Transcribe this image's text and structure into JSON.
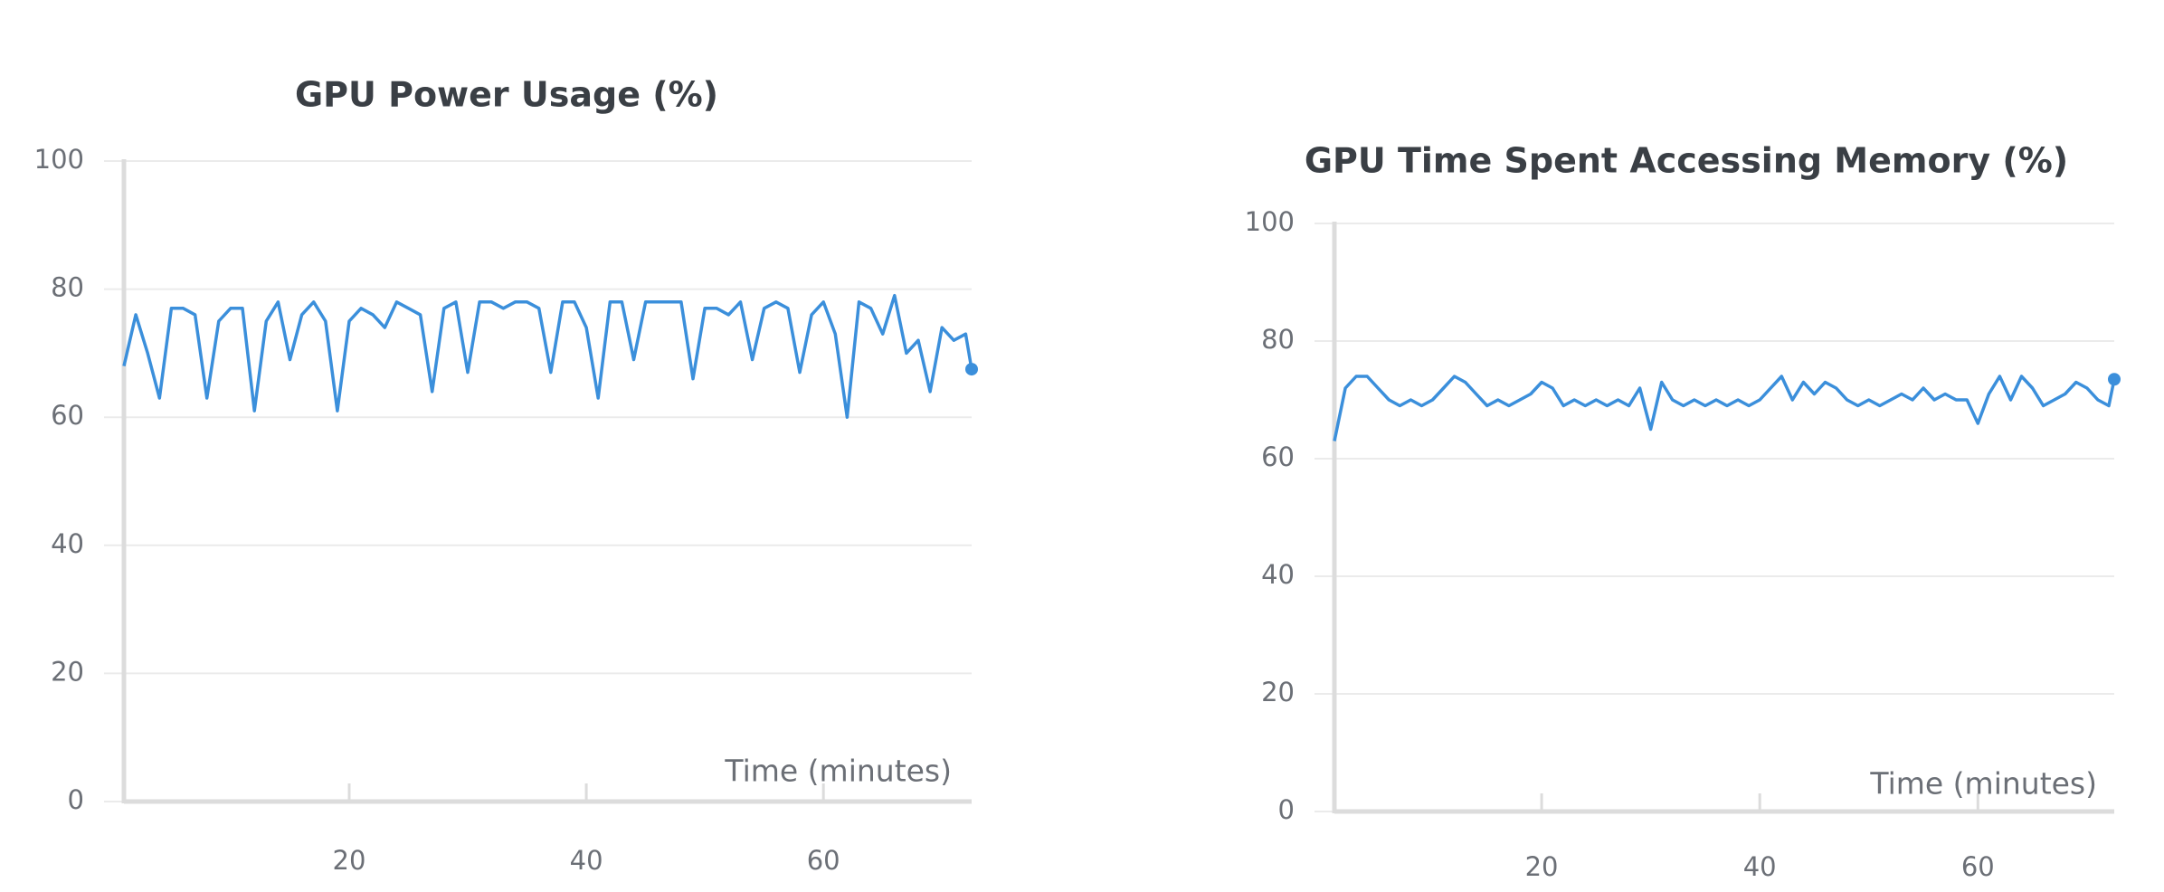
{
  "chart_data": [
    {
      "type": "line",
      "title": "GPU Power Usage (%)",
      "x_label": "Time (minutes)",
      "color": "#3b8fdb",
      "x": [
        1,
        2,
        3,
        4,
        5,
        6,
        7,
        8,
        9,
        10,
        11,
        12,
        13,
        14,
        15,
        16,
        17,
        18,
        19,
        20,
        21,
        22,
        23,
        24,
        25,
        26,
        27,
        28,
        29,
        30,
        31,
        32,
        33,
        34,
        35,
        36,
        37,
        38,
        39,
        40,
        41,
        42,
        43,
        44,
        45,
        46,
        47,
        48,
        49,
        50,
        51,
        52,
        53,
        54,
        55,
        56,
        57,
        58,
        59,
        60,
        61,
        62,
        63,
        64,
        65,
        66,
        67,
        68,
        69,
        70,
        71,
        72,
        72.5
      ],
      "values": [
        68,
        76,
        70,
        63,
        77,
        77,
        76,
        63,
        75,
        77,
        77,
        61,
        75,
        78,
        69,
        76,
        78,
        75,
        61,
        75,
        77,
        76,
        74,
        78,
        77,
        76,
        64,
        77,
        78,
        67,
        78,
        78,
        77,
        78,
        78,
        77,
        67,
        78,
        78,
        74,
        63,
        78,
        78,
        69,
        78,
        78,
        78,
        78,
        66,
        77,
        77,
        76,
        78,
        69,
        77,
        78,
        77,
        67,
        76,
        78,
        73,
        60,
        78,
        77,
        73,
        79,
        70,
        72,
        64,
        74,
        72,
        73,
        67.5
      ],
      "xlim": [
        1,
        72.5
      ],
      "ylim": [
        0,
        100
      ],
      "xticks": [
        20,
        40,
        60
      ],
      "yticks": [
        0,
        20,
        40,
        60,
        80,
        100
      ],
      "grid": true
    },
    {
      "type": "line",
      "title": "GPU Time Spent Accessing Memory (%)",
      "x_label": "Time (minutes)",
      "color": "#3b8fdb",
      "x": [
        1,
        2,
        3,
        4,
        5,
        6,
        7,
        8,
        9,
        10,
        11,
        12,
        13,
        14,
        15,
        16,
        17,
        18,
        19,
        20,
        21,
        22,
        23,
        24,
        25,
        26,
        27,
        28,
        29,
        30,
        31,
        32,
        33,
        34,
        35,
        36,
        37,
        38,
        39,
        40,
        41,
        42,
        43,
        44,
        45,
        46,
        47,
        48,
        49,
        50,
        51,
        52,
        53,
        54,
        55,
        56,
        57,
        58,
        59,
        60,
        61,
        62,
        63,
        64,
        65,
        66,
        67,
        68,
        69,
        70,
        71,
        72,
        72.5
      ],
      "values": [
        63,
        72,
        74,
        74,
        72,
        70,
        69,
        70,
        69,
        70,
        72,
        74,
        73,
        71,
        69,
        70,
        69,
        70,
        71,
        73,
        72,
        69,
        70,
        69,
        70,
        69,
        70,
        69,
        72,
        65,
        73,
        70,
        69,
        70,
        69,
        70,
        69,
        70,
        69,
        70,
        72,
        74,
        70,
        73,
        71,
        73,
        72,
        70,
        69,
        70,
        69,
        70,
        71,
        70,
        72,
        70,
        71,
        70,
        70,
        66,
        71,
        74,
        70,
        74,
        72,
        69,
        70,
        71,
        73,
        72,
        70,
        69,
        73.5
      ],
      "xlim": [
        1,
        72.5
      ],
      "ylim": [
        0,
        100
      ],
      "xticks": [
        20,
        40,
        60
      ],
      "yticks": [
        0,
        20,
        40,
        60,
        80,
        100
      ],
      "grid": true
    }
  ]
}
